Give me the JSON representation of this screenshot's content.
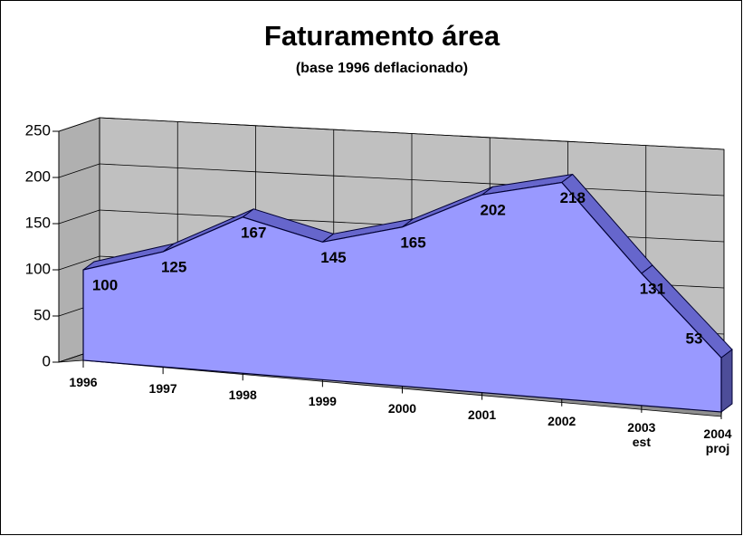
{
  "chart_data": {
    "type": "area3d",
    "title": "Faturamento área",
    "subtitle": "(base 1996 deflacionado)",
    "categories": [
      "1996",
      "1997",
      "1998",
      "1999",
      "2000",
      "2001",
      "2002",
      "2003 est",
      "2004 proj"
    ],
    "values": [
      100,
      125,
      167,
      145,
      165,
      202,
      218,
      131,
      53
    ],
    "color": "#9999ff",
    "ylim": [
      0,
      250
    ],
    "yticks": [
      0,
      50,
      100,
      150,
      200,
      250
    ],
    "grid": true
  }
}
